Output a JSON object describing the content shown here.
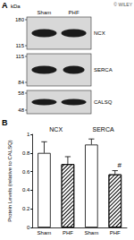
{
  "panel_a": {
    "label": "A",
    "watermark": "© WILEY",
    "unit": "kDa",
    "lanes": [
      "Sham",
      "PHF"
    ],
    "blots": [
      {
        "protein": "NCX",
        "markers": [
          180,
          115
        ]
      },
      {
        "protein": "SERCA",
        "markers": [
          115,
          84
        ]
      },
      {
        "protein": "CALSQ",
        "markers": [
          58,
          48
        ]
      }
    ]
  },
  "chart_data": {
    "type": "bar",
    "panel_label": "B",
    "y_label": "Protein Levels (relative to CALSQ)",
    "categories": [
      "Sham",
      "PHF",
      "Sham",
      "PHF"
    ],
    "groups": [
      "NCX",
      "SERCA"
    ],
    "values": [
      0.8,
      0.68,
      0.89,
      0.57
    ],
    "errors": [
      0.12,
      0.08,
      0.06,
      0.04
    ],
    "colors": [
      "#ffffff",
      "#ffffff",
      "#ffffff",
      "#ffffff"
    ],
    "annotations": [
      {
        "text": "#",
        "index": 3
      }
    ],
    "ylim": [
      0,
      1
    ],
    "yticks": [
      0,
      0.2,
      0.4,
      0.6,
      0.8,
      1
    ],
    "grid": false
  }
}
